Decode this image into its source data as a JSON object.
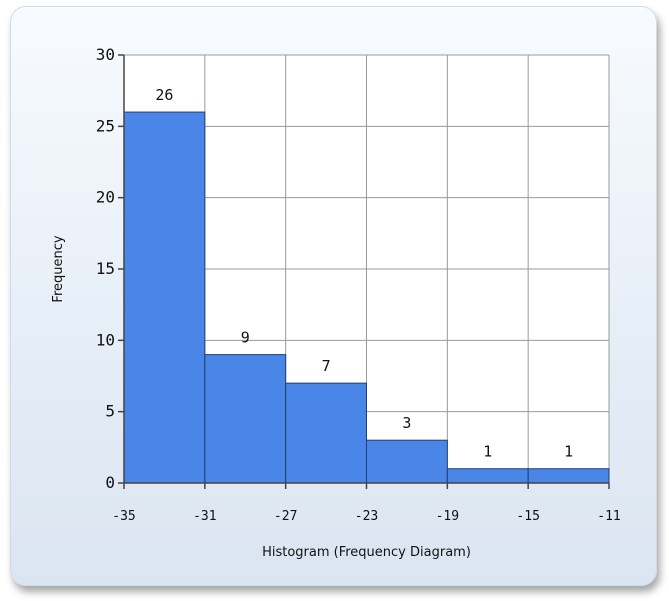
{
  "chart_data": {
    "type": "bar",
    "subtype": "histogram",
    "bin_edges": [
      -35,
      -31,
      -27,
      -23,
      -19,
      -15,
      -11
    ],
    "values": [
      26,
      9,
      7,
      3,
      1,
      1
    ],
    "data_labels": [
      "26",
      "9",
      "7",
      "3",
      "1",
      "1"
    ],
    "x_tick_labels": [
      "-35",
      "-31",
      "-27",
      "-23",
      "-19",
      "-15",
      "-11"
    ],
    "y_tick_labels": [
      "0",
      "5",
      "10",
      "15",
      "20",
      "25",
      "30"
    ],
    "y_ticks": [
      0,
      5,
      10,
      15,
      20,
      25,
      30
    ],
    "xlabel": "Histogram (Frequency Diagram)",
    "ylabel": "Frequency",
    "xlim": [
      -35,
      -11
    ],
    "ylim": [
      0,
      30
    ],
    "grid": true,
    "colors": {
      "bar_fill": "#4a86e8",
      "bar_stroke": "#1f3f73",
      "grid": "#9a9a9a",
      "axis": "#444444",
      "plot_background": "#ffffff"
    }
  }
}
